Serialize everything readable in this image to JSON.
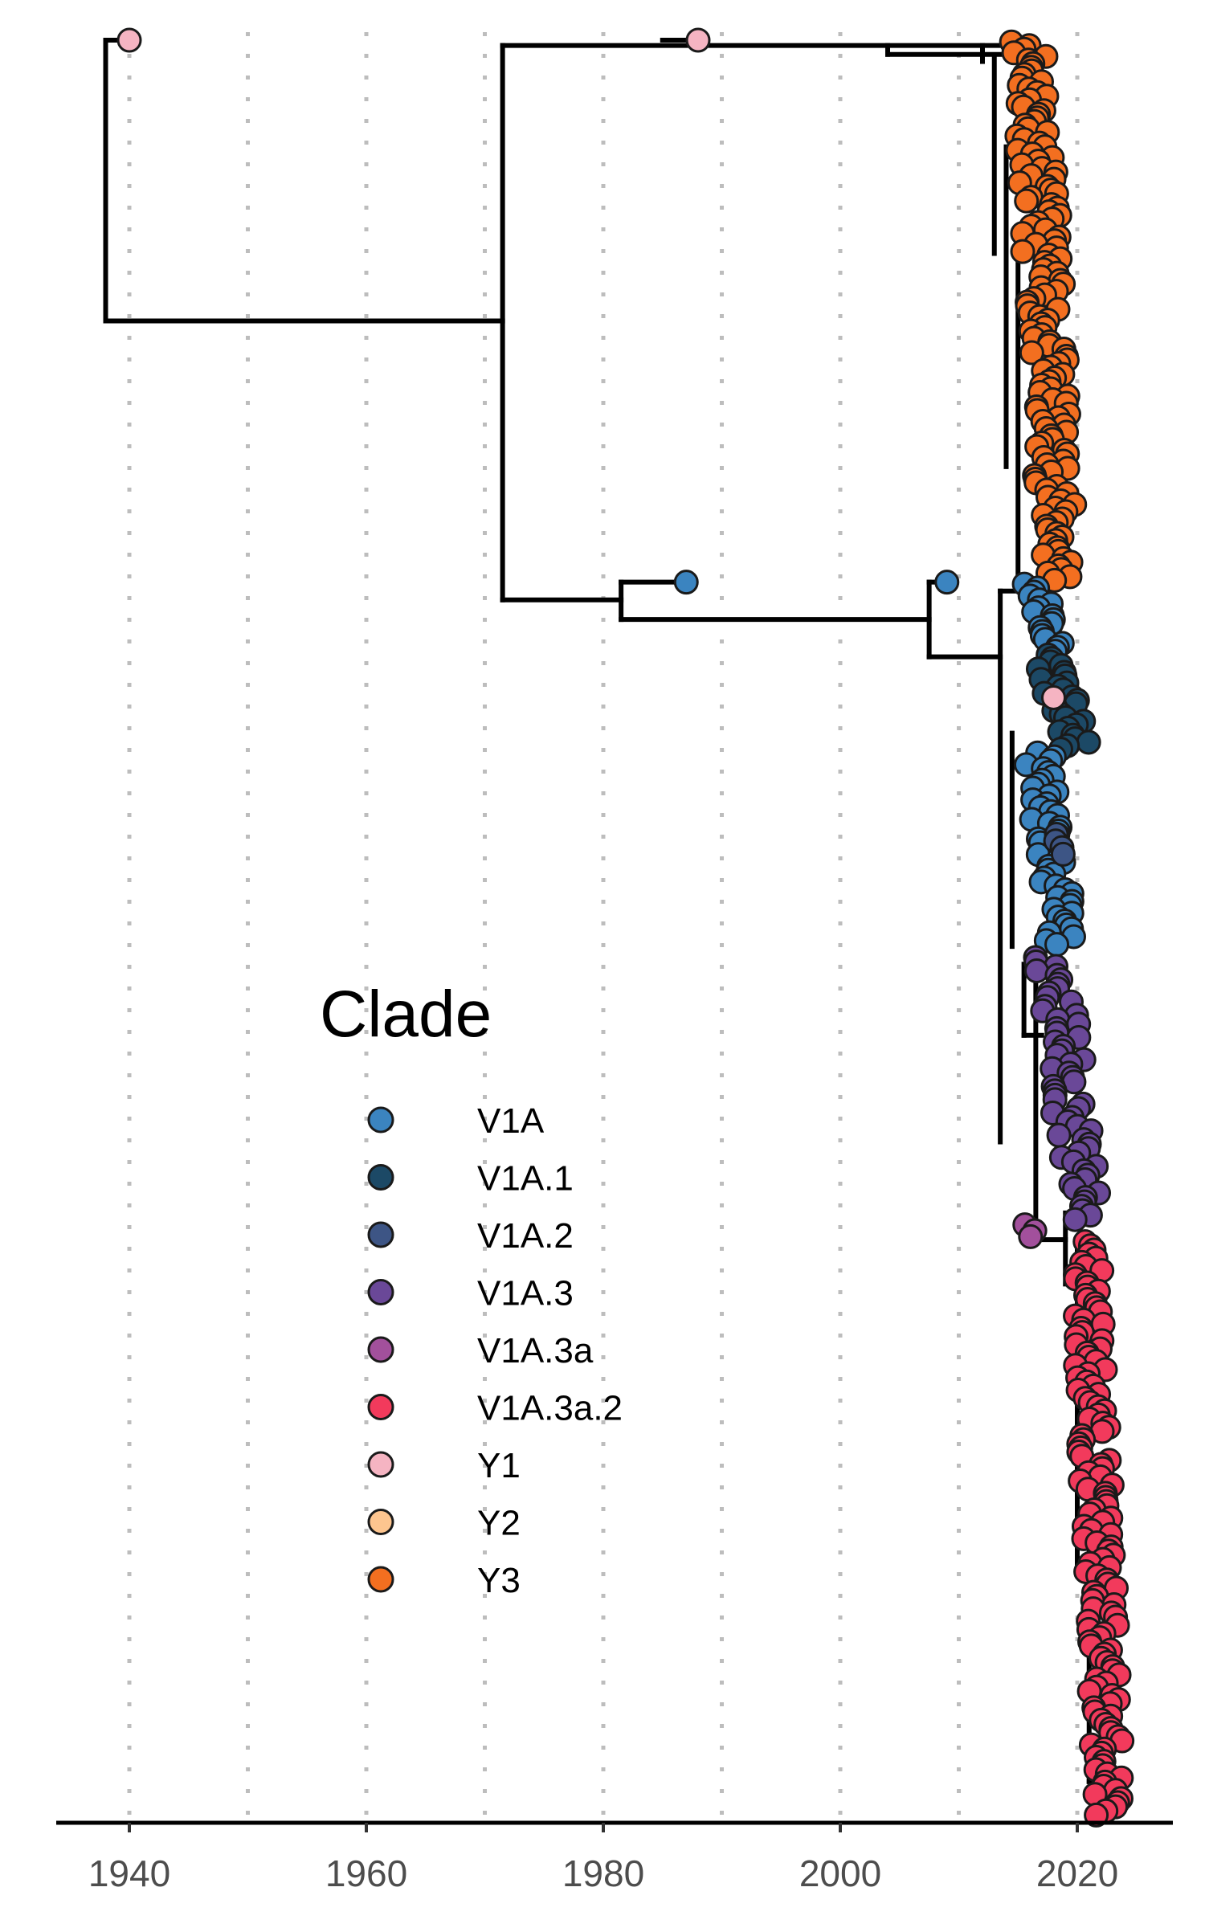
{
  "chart_data": {
    "type": "scatter",
    "subtype": "time-scaled phylogenetic tree",
    "title": "",
    "xlabel": "",
    "ylabel": "",
    "xlim": [
      1934,
      2028
    ],
    "x_ticks": [
      "1940",
      "1960",
      "1980",
      "2000",
      "2020"
    ],
    "grid": "vertical dotted gridlines every 10 years",
    "legend_position": "left-bottom inside plot",
    "legend": {
      "title": "Clade",
      "entries": [
        {
          "name": "V1A",
          "color": "#3b84c0"
        },
        {
          "name": "V1A.1",
          "color": "#1c4966"
        },
        {
          "name": "V1A.2",
          "color": "#3d5585"
        },
        {
          "name": "V1A.3",
          "color": "#6a4898"
        },
        {
          "name": "V1A.3a",
          "color": "#a2509c"
        },
        {
          "name": "V1A.3a.2",
          "color": "#f23a5c"
        },
        {
          "name": "Y1",
          "color": "#f5b4c2"
        },
        {
          "name": "Y2",
          "color": "#fdc58f"
        },
        {
          "name": "Y3",
          "color": "#f36f20"
        }
      ]
    },
    "root_date": 1938,
    "named_tips": [
      {
        "clade": "Y1",
        "x": 1940,
        "tree_position": 0.0
      },
      {
        "clade": "Y1",
        "x": 1988,
        "tree_position": 0.0
      },
      {
        "clade": "V1A",
        "x": 1987,
        "tree_position": 0.305
      },
      {
        "clade": "V1A",
        "x": 2009,
        "tree_position": 0.305
      },
      {
        "clade": "Y1",
        "x": 2018,
        "tree_position": 0.37
      }
    ],
    "tip_groups": [
      {
        "clade": "Y3",
        "tree_position_range": [
          0.0,
          0.305
        ],
        "x_range": [
          2014,
          2020
        ],
        "count": 150
      },
      {
        "clade": "V1A",
        "tree_position_range": [
          0.305,
          0.345
        ],
        "x_range": [
          2015,
          2019
        ],
        "count": 18
      },
      {
        "clade": "V1A.1",
        "tree_position_range": [
          0.345,
          0.4
        ],
        "x_range": [
          2016,
          2021
        ],
        "count": 28
      },
      {
        "clade": "V1A",
        "tree_position_range": [
          0.4,
          0.51
        ],
        "x_range": [
          2015,
          2020
        ],
        "count": 50
      },
      {
        "clade": "V1A.2",
        "tree_position_range": [
          0.445,
          0.46
        ],
        "x_range": [
          2017,
          2019
        ],
        "count": 4
      },
      {
        "clade": "V1A.3",
        "tree_position_range": [
          0.515,
          0.665
        ],
        "x_range": [
          2016,
          2022
        ],
        "count": 60
      },
      {
        "clade": "V1A.3a",
        "tree_position_range": [
          0.665,
          0.675
        ],
        "x_range": [
          2015,
          2017
        ],
        "count": 3
      },
      {
        "clade": "V1A.3a.2",
        "tree_position_range": [
          0.675,
          1.0
        ],
        "x_range": [
          2019,
          2024
        ],
        "count": 140
      }
    ]
  }
}
